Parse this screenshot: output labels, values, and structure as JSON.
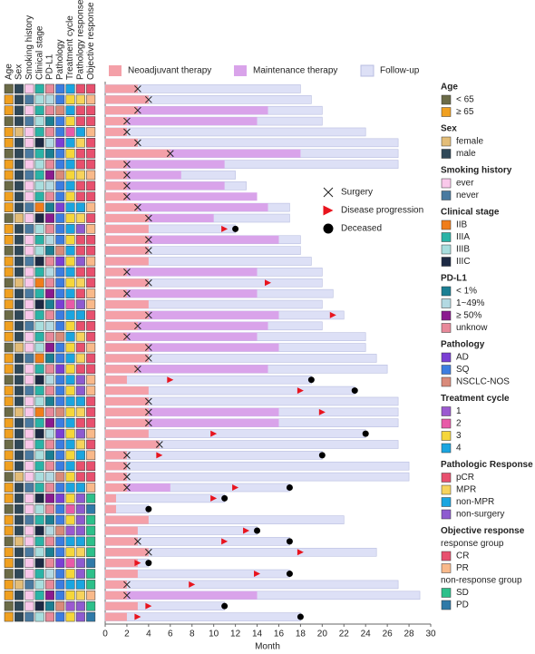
{
  "chart_data": {
    "type": "swimmer",
    "xlabel": "Month",
    "xlim": [
      0,
      30
    ],
    "xticks": [
      0,
      2,
      4,
      6,
      8,
      10,
      12,
      14,
      16,
      18,
      20,
      22,
      24,
      26,
      28,
      30
    ],
    "series": [
      {
        "name": "Follow-up",
        "color": "#dde0f6",
        "values": [
          18,
          19,
          20,
          20,
          24,
          27,
          27,
          27,
          12,
          13,
          null,
          17,
          17,
          12,
          18,
          18,
          19,
          20,
          20,
          21,
          20,
          22,
          20,
          24,
          24,
          25,
          26,
          19,
          23,
          27,
          27,
          27,
          24,
          27,
          20,
          28,
          28,
          17,
          11,
          4,
          22,
          14,
          17,
          25,
          4,
          17,
          27,
          29,
          11,
          18
        ]
      },
      {
        "name": "Maintenance therapy",
        "color": "#d9a3ea",
        "values": [
          null,
          null,
          15,
          14,
          null,
          null,
          18,
          11,
          7,
          11,
          14,
          15,
          10,
          null,
          16,
          null,
          null,
          14,
          null,
          14,
          null,
          16,
          15,
          14,
          16,
          null,
          15,
          null,
          null,
          null,
          16,
          16,
          null,
          null,
          null,
          null,
          null,
          6,
          null,
          null,
          null,
          null,
          null,
          null,
          null,
          null,
          null,
          14,
          null,
          null
        ]
      },
      {
        "name": "Neoadjuvant therapy",
        "color": "#f4a0a8",
        "values": [
          3,
          4,
          3,
          2,
          2,
          3,
          6,
          2,
          2,
          2,
          2,
          3,
          4,
          4,
          4,
          4,
          4,
          2,
          4,
          2,
          4,
          4,
          3,
          2,
          4,
          4,
          3,
          2,
          4,
          4,
          4,
          4,
          4,
          5,
          2,
          2,
          2,
          2,
          1,
          1,
          4,
          3,
          3,
          4,
          3,
          3,
          2,
          2,
          3,
          2
        ]
      }
    ],
    "markers": [
      {
        "name": "Surgery",
        "symbol": "x",
        "color": "#222222",
        "values": [
          3,
          4,
          3,
          2,
          2,
          3,
          6,
          2,
          2,
          2,
          2,
          3,
          4,
          null,
          4,
          4,
          null,
          2,
          4,
          2,
          null,
          4,
          3,
          2,
          4,
          4,
          3,
          null,
          null,
          4,
          4,
          4,
          null,
          5,
          2,
          2,
          2,
          2,
          null,
          null,
          null,
          null,
          3,
          4,
          null,
          null,
          2,
          2,
          null,
          null
        ]
      },
      {
        "name": "Disease progression",
        "symbol": "triangle",
        "color": "#e8141e",
        "values": [
          null,
          null,
          null,
          null,
          null,
          null,
          null,
          null,
          null,
          null,
          null,
          null,
          null,
          11,
          null,
          null,
          null,
          null,
          15,
          null,
          null,
          21,
          null,
          null,
          null,
          null,
          null,
          6,
          18,
          null,
          20,
          null,
          10,
          null,
          5,
          null,
          null,
          12,
          10,
          null,
          null,
          13,
          11,
          18,
          3,
          14,
          8,
          null,
          4,
          3
        ]
      },
      {
        "name": "Deceased",
        "symbol": "circle",
        "color": "#000000",
        "values": [
          null,
          null,
          null,
          null,
          null,
          null,
          null,
          null,
          null,
          null,
          null,
          null,
          null,
          12,
          null,
          null,
          null,
          null,
          null,
          null,
          null,
          null,
          null,
          null,
          null,
          null,
          null,
          19,
          23,
          null,
          null,
          null,
          24,
          null,
          20,
          null,
          null,
          17,
          11,
          4,
          null,
          14,
          17,
          null,
          4,
          17,
          null,
          null,
          11,
          18
        ]
      }
    ],
    "heatmap": {
      "columns": [
        "Age",
        "Sex",
        "Smoking history",
        "Clinical stage",
        "PD-L1",
        "Pathology",
        "Treatment cycle",
        "Pathology response",
        "Objective response"
      ],
      "rows": [
        [
          "< 65",
          "male",
          "ever",
          "IIIA",
          "unknow",
          "SQ",
          "4",
          "pCR",
          "CR"
        ],
        [
          "≥ 65",
          "male",
          "never",
          "IIIB",
          "1~49%",
          "SQ",
          "3",
          "MPR",
          "PR"
        ],
        [
          "≥ 65",
          "male",
          "ever",
          "IIIA",
          "unknow",
          "NSCLC-NOS",
          "4",
          "pCR",
          "CR"
        ],
        [
          "< 65",
          "male",
          "never",
          "IIIB",
          "< 1%",
          "SQ",
          "3",
          "pCR",
          "CR"
        ],
        [
          "≥ 65",
          "female",
          "ever",
          "IIIA",
          "unknow",
          "SQ",
          "2",
          "non-MPR",
          "PR"
        ],
        [
          "≥ 65",
          "male",
          "ever",
          "IIIC",
          "1~49%",
          "AD",
          "4",
          "MPR",
          "CR"
        ],
        [
          "< 65",
          "male",
          "never",
          "IIIA",
          "< 1%",
          "SQ",
          "3",
          "pCR",
          "CR"
        ],
        [
          "≥ 65",
          "male",
          "ever",
          "IIIB",
          "unknow",
          "SQ",
          "4",
          "pCR",
          "CR"
        ],
        [
          "≥ 65",
          "male",
          "never",
          "IIIA",
          "≥ 50%",
          "NSCLC-NOS",
          "3",
          "MPR",
          "PR"
        ],
        [
          "< 65",
          "male",
          "ever",
          "IIIB",
          "1~49%",
          "SQ",
          "4",
          "pCR",
          "CR"
        ],
        [
          "≥ 65",
          "male",
          "ever",
          "IIIA",
          "unknow",
          "SQ",
          "3",
          "pCR",
          "CR"
        ],
        [
          "≥ 65",
          "male",
          "never",
          "IIB",
          "< 1%",
          "AD",
          "4",
          "non-MPR",
          "PR"
        ],
        [
          "< 65",
          "female",
          "ever",
          "IIIC",
          "≥ 50%",
          "SQ",
          "3",
          "MPR",
          "CR"
        ],
        [
          "≥ 65",
          "male",
          "never",
          "IIIB",
          "unknow",
          "SQ",
          "4",
          "non-surgery",
          "PR"
        ],
        [
          "≥ 65",
          "male",
          "ever",
          "IIIA",
          "1~49%",
          "SQ",
          "3",
          "pCR",
          "CR"
        ],
        [
          "< 65",
          "male",
          "ever",
          "IIIB",
          "< 1%",
          "NSCLC-NOS",
          "4",
          "pCR",
          "CR"
        ],
        [
          "≥ 65",
          "male",
          "never",
          "IIIC",
          "unknow",
          "AD",
          "3",
          "non-surgery",
          "PR"
        ],
        [
          "≥ 65",
          "male",
          "ever",
          "IIIA",
          "1~49%",
          "SQ",
          "4",
          "pCR",
          "CR"
        ],
        [
          "< 65",
          "female",
          "ever",
          "IIB",
          "unknow",
          "SQ",
          "3",
          "MPR",
          "CR"
        ],
        [
          "≥ 65",
          "male",
          "never",
          "IIIA",
          "≥ 50%",
          "SQ",
          "4",
          "pCR",
          "PR"
        ],
        [
          "≥ 65",
          "male",
          "ever",
          "IIIC",
          "< 1%",
          "AD",
          "2",
          "non-surgery",
          "PR"
        ],
        [
          "< 65",
          "male",
          "ever",
          "IIIA",
          "unknow",
          "SQ",
          "4",
          "non-MPR",
          "CR"
        ],
        [
          "≥ 65",
          "male",
          "never",
          "IIIB",
          "1~49%",
          "SQ",
          "3",
          "pCR",
          "CR"
        ],
        [
          "≥ 65",
          "male",
          "ever",
          "IIIA",
          "unknow",
          "NSCLC-NOS",
          "4",
          "MPR",
          "CR"
        ],
        [
          "< 65",
          "female",
          "ever",
          "IIIB",
          "≥ 50%",
          "SQ",
          "3",
          "pCR",
          "PR"
        ],
        [
          "≥ 65",
          "male",
          "never",
          "IIB",
          "< 1%",
          "SQ",
          "4",
          "MPR",
          "CR"
        ],
        [
          "≥ 65",
          "male",
          "ever",
          "IIIA",
          "unknow",
          "AD",
          "3",
          "pCR",
          "CR"
        ],
        [
          "< 65",
          "male",
          "ever",
          "IIIC",
          "1~49%",
          "SQ",
          "4",
          "non-surgery",
          "PR"
        ],
        [
          "≥ 65",
          "male",
          "never",
          "IIIA",
          "unknow",
          "SQ",
          "3",
          "non-surgery",
          "PR"
        ],
        [
          "≥ 65",
          "male",
          "ever",
          "IIIB",
          "< 1%",
          "SQ",
          "4",
          "non-MPR",
          "CR"
        ],
        [
          "< 65",
          "female",
          "ever",
          "IIB",
          "unknow",
          "NSCLC-NOS",
          "3",
          "MPR",
          "CR"
        ],
        [
          "≥ 65",
          "male",
          "never",
          "IIIA",
          "≥ 50%",
          "SQ",
          "4",
          "pCR",
          "CR"
        ],
        [
          "≥ 65",
          "male",
          "ever",
          "IIIC",
          "1~49%",
          "AD",
          "3",
          "non-surgery",
          "PR"
        ],
        [
          "< 65",
          "male",
          "ever",
          "IIIA",
          "unknow",
          "SQ",
          "4",
          "MPR",
          "CR"
        ],
        [
          "≥ 65",
          "male",
          "never",
          "IIIB",
          "< 1%",
          "SQ",
          "3",
          "non-MPR",
          "PR"
        ],
        [
          "≥ 65",
          "male",
          "ever",
          "IIIA",
          "unknow",
          "SQ",
          "4",
          "pCR",
          "CR"
        ],
        [
          "< 65",
          "female",
          "ever",
          "IIIB",
          "1~49%",
          "NSCLC-NOS",
          "3",
          "pCR",
          "CR"
        ],
        [
          "≥ 65",
          "male",
          "never",
          "IIIA",
          "unknow",
          "SQ",
          "4",
          "non-MPR",
          "PR"
        ],
        [
          "≥ 65",
          "male",
          "ever",
          "IIIC",
          "≥ 50%",
          "AD",
          "3",
          "non-surgery",
          "SD"
        ],
        [
          "< 65",
          "male",
          "ever",
          "IIIB",
          "unknow",
          "SQ",
          "2",
          "non-surgery",
          "PD"
        ],
        [
          "≥ 65",
          "male",
          "never",
          "IIIA",
          "< 1%",
          "SQ",
          "3",
          "non-surgery",
          "SD"
        ],
        [
          "≥ 65",
          "male",
          "ever",
          "IIIC",
          "1~49%",
          "NSCLC-NOS",
          "1",
          "non-surgery",
          "SD"
        ],
        [
          "< 65",
          "female",
          "ever",
          "IIIA",
          "unknow",
          "SQ",
          "4",
          "non-MPR",
          "SD"
        ],
        [
          "≥ 65",
          "male",
          "never",
          "IIIB",
          "< 1%",
          "SQ",
          "3",
          "MPR",
          "SD"
        ],
        [
          "≥ 65",
          "male",
          "ever",
          "IIIC",
          "unknow",
          "AD",
          "2",
          "non-surgery",
          "PD"
        ],
        [
          "< 65",
          "male",
          "ever",
          "IIIA",
          "1~49%",
          "SQ",
          "3",
          "non-surgery",
          "SD"
        ],
        [
          "≥ 65",
          "female",
          "never",
          "IIIB",
          "unknow",
          "SQ",
          "4",
          "non-MPR",
          "SD"
        ],
        [
          "≥ 65",
          "male",
          "ever",
          "IIIA",
          "≥ 50%",
          "SQ",
          "3",
          "MPR",
          "PR"
        ],
        [
          "< 65",
          "male",
          "ever",
          "IIIC",
          "< 1%",
          "NSCLC-NOS",
          "1",
          "non-surgery",
          "SD"
        ],
        [
          "≥ 65",
          "male",
          "never",
          "IIIB",
          "unknow",
          "SQ",
          "3",
          "non-surgery",
          "PD"
        ]
      ]
    },
    "legend_groups": [
      {
        "title": "Age",
        "items": [
          {
            "label": "< 65",
            "color": "#6b6b47"
          },
          {
            "label": "≥ 65",
            "color": "#f0a020"
          }
        ]
      },
      {
        "title": "Sex",
        "items": [
          {
            "label": "female",
            "color": "#e3bd78"
          },
          {
            "label": "male",
            "color": "#2f4858"
          }
        ]
      },
      {
        "title": "Smoking history",
        "items": [
          {
            "label": "ever",
            "color": "#f9c8ea"
          },
          {
            "label": "never",
            "color": "#4a7aa0"
          }
        ]
      },
      {
        "title": "Clinical stage",
        "items": [
          {
            "label": "IIB",
            "color": "#f07d1a"
          },
          {
            "label": "IIIA",
            "color": "#2ab3a6"
          },
          {
            "label": "IIIB",
            "color": "#a8dede"
          },
          {
            "label": "IIIC",
            "color": "#1d2a44"
          }
        ]
      },
      {
        "title": "PD-L1",
        "items": [
          {
            "label": "< 1%",
            "color": "#1b7f93"
          },
          {
            "label": "1~49%",
            "color": "#b3d9e2"
          },
          {
            "label": "≥ 50%",
            "color": "#8b1a8f"
          },
          {
            "label": "unknow",
            "color": "#e8899a"
          }
        ]
      },
      {
        "title": "Pathology",
        "items": [
          {
            "label": "AD",
            "color": "#7b3fd4"
          },
          {
            "label": "SQ",
            "color": "#3c7de0"
          },
          {
            "label": "NSCLC-NOS",
            "color": "#d98a7a"
          }
        ]
      },
      {
        "title": "Treatment cycle",
        "items": [
          {
            "label": "1",
            "color": "#9b59d0"
          },
          {
            "label": "2",
            "color": "#e85aa8"
          },
          {
            "label": "3",
            "color": "#f5d63a"
          },
          {
            "label": "4",
            "color": "#1aa5e0"
          }
        ]
      },
      {
        "title": "Pathologic Response",
        "items": [
          {
            "label": "pCR",
            "color": "#e8506e"
          },
          {
            "label": "MPR",
            "color": "#f7d35c"
          },
          {
            "label": "non-MPR",
            "color": "#1aa5e0"
          },
          {
            "label": "non-surgery",
            "color": "#8e5bd0"
          }
        ]
      },
      {
        "title": "Objective response",
        "sections": [
          {
            "heading": "response group",
            "items": [
              {
                "label": "CR",
                "color": "#e8506e"
              },
              {
                "label": "PR",
                "color": "#f9b98a"
              }
            ]
          },
          {
            "heading": "non-response group",
            "items": [
              {
                "label": "SD",
                "color": "#2cc08a"
              },
              {
                "label": "PD",
                "color": "#2f7aa8"
              }
            ]
          }
        ]
      }
    ]
  }
}
